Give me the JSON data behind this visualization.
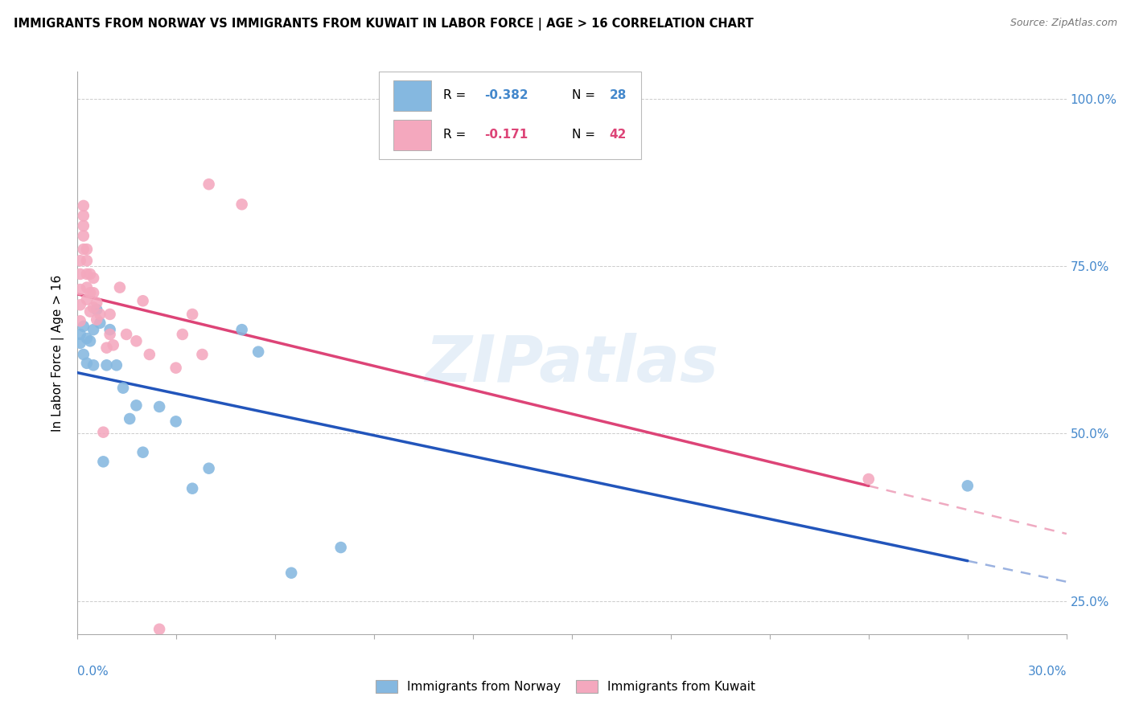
{
  "title": "IMMIGRANTS FROM NORWAY VS IMMIGRANTS FROM KUWAIT IN LABOR FORCE | AGE > 16 CORRELATION CHART",
  "source": "Source: ZipAtlas.com",
  "ylabel": "In Labor Force | Age > 16",
  "xlim": [
    0.0,
    0.3
  ],
  "ylim": [
    0.2,
    1.04
  ],
  "norway_color": "#85b8e0",
  "kuwait_color": "#f4a8be",
  "norway_line_color": "#2255bb",
  "kuwait_line_color": "#dd4477",
  "right_axis_color": "#4488cc",
  "background_color": "#ffffff",
  "grid_color": "#cccccc",
  "norway_x": [
    0.001,
    0.001,
    0.002,
    0.002,
    0.003,
    0.003,
    0.004,
    0.005,
    0.005,
    0.006,
    0.007,
    0.008,
    0.009,
    0.01,
    0.012,
    0.014,
    0.016,
    0.018,
    0.02,
    0.025,
    0.03,
    0.035,
    0.04,
    0.05,
    0.055,
    0.065,
    0.08,
    0.27
  ],
  "norway_y": [
    0.648,
    0.635,
    0.66,
    0.618,
    0.642,
    0.605,
    0.638,
    0.655,
    0.602,
    0.685,
    0.665,
    0.458,
    0.602,
    0.655,
    0.602,
    0.568,
    0.522,
    0.542,
    0.472,
    0.54,
    0.518,
    0.418,
    0.448,
    0.655,
    0.622,
    0.292,
    0.33,
    0.422
  ],
  "kuwait_x": [
    0.001,
    0.001,
    0.001,
    0.001,
    0.001,
    0.002,
    0.002,
    0.002,
    0.002,
    0.002,
    0.003,
    0.003,
    0.003,
    0.003,
    0.003,
    0.004,
    0.004,
    0.004,
    0.005,
    0.005,
    0.005,
    0.006,
    0.006,
    0.007,
    0.008,
    0.009,
    0.01,
    0.01,
    0.011,
    0.013,
    0.015,
    0.018,
    0.02,
    0.022,
    0.025,
    0.03,
    0.032,
    0.035,
    0.038,
    0.04,
    0.05,
    0.24
  ],
  "kuwait_y": [
    0.668,
    0.692,
    0.715,
    0.738,
    0.758,
    0.775,
    0.795,
    0.81,
    0.825,
    0.84,
    0.7,
    0.718,
    0.738,
    0.758,
    0.775,
    0.682,
    0.71,
    0.738,
    0.688,
    0.71,
    0.732,
    0.67,
    0.695,
    0.678,
    0.502,
    0.628,
    0.648,
    0.678,
    0.632,
    0.718,
    0.648,
    0.638,
    0.698,
    0.618,
    0.208,
    0.598,
    0.648,
    0.678,
    0.618,
    0.872,
    0.842,
    0.432
  ],
  "ytick_positions": [
    0.25,
    0.5,
    0.75,
    1.0
  ],
  "ytick_labels": [
    "25.0%",
    "50.0%",
    "75.0%",
    "100.0%"
  ],
  "legend_norway_label": "Immigrants from Norway",
  "legend_kuwait_label": "Immigrants from Kuwait",
  "norway_R_text": "-0.382",
  "norway_N_text": "28",
  "kuwait_R_text": "-0.171",
  "kuwait_N_text": "42"
}
